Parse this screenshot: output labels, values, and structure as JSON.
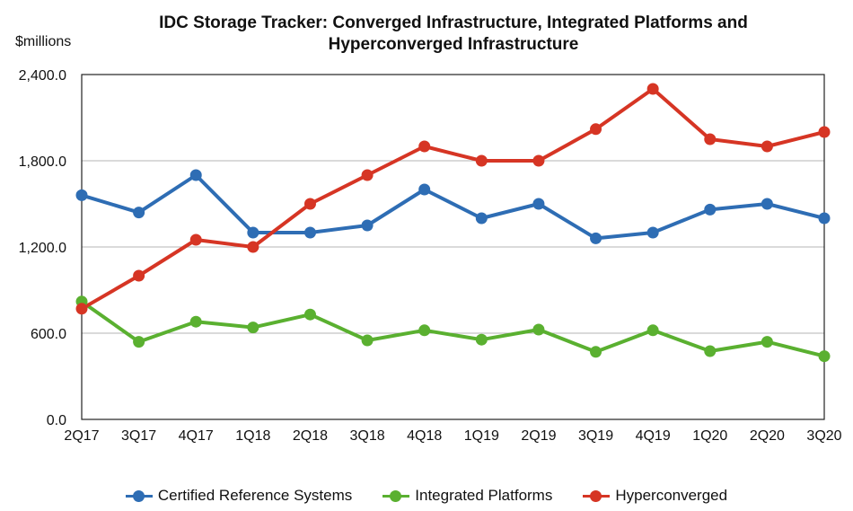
{
  "chart_data": {
    "type": "line",
    "title": "IDC Storage Tracker: Converged Infrastructure, Integrated Platforms and Hyperconverged Infrastructure",
    "title_lines": [
      "IDC Storage Tracker: Converged Infrastructure, Integrated Platforms and",
      "Hyperconverged Infrastructure"
    ],
    "ylabel": "$millions",
    "xlabel": "",
    "ylim": [
      0,
      2400
    ],
    "yticks": [
      "0.0",
      "600.0",
      "1,200.0",
      "1,800.0",
      "2,400.0"
    ],
    "ytick_values": [
      0,
      600,
      1200,
      1800,
      2400
    ],
    "grid": true,
    "legend_position": "bottom",
    "categories": [
      "2Q17",
      "3Q17",
      "4Q17",
      "1Q18",
      "2Q18",
      "3Q18",
      "4Q18",
      "1Q19",
      "2Q19",
      "3Q19",
      "4Q19",
      "1Q20",
      "2Q20",
      "3Q20"
    ],
    "series": [
      {
        "name": "Certified Reference Systems",
        "color": "#2e6db4",
        "values": [
          1560,
          1440,
          1700,
          1300,
          1300,
          1350,
          1600,
          1400,
          1500,
          1260,
          1300,
          1460,
          1500,
          1400
        ]
      },
      {
        "name": "Integrated Platforms",
        "color": "#5ab030",
        "values": [
          820,
          540,
          680,
          640,
          730,
          550,
          620,
          555,
          625,
          470,
          620,
          475,
          540,
          440
        ]
      },
      {
        "name": "Hyperconverged",
        "color": "#d63524",
        "values": [
          770,
          1000,
          1250,
          1200,
          1500,
          1700,
          1900,
          1800,
          1800,
          2020,
          2300,
          1950,
          1900,
          2000
        ]
      }
    ]
  }
}
